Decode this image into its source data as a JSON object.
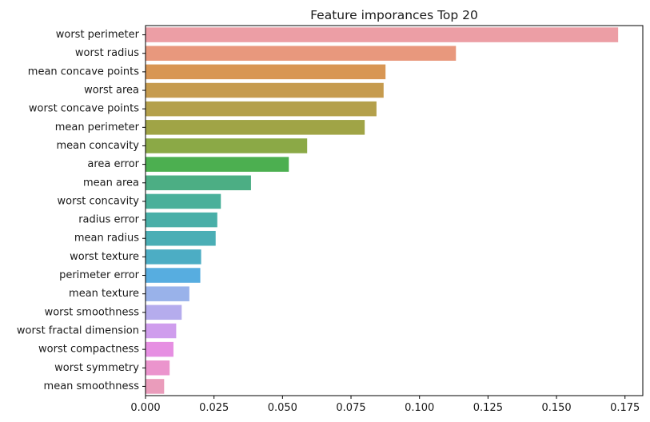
{
  "chart_data": {
    "type": "bar",
    "orientation": "horizontal",
    "title": "Feature imporances Top 20",
    "xlabel": "",
    "ylabel": "",
    "xlim": [
      0.0,
      0.1815
    ],
    "grid": false,
    "legend": "none",
    "categories": [
      "worst perimeter",
      "worst radius",
      "mean concave points",
      "worst area",
      "worst concave points",
      "mean perimeter",
      "mean concavity",
      "area error",
      "mean area",
      "worst concavity",
      "radius error",
      "mean radius",
      "worst texture",
      "perimeter error",
      "mean texture",
      "worst smoothness",
      "worst fractal dimension",
      "worst compactness",
      "worst symmetry",
      "mean smoothness"
    ],
    "values": [
      0.1725,
      0.1133,
      0.0876,
      0.0869,
      0.0843,
      0.08,
      0.059,
      0.0523,
      0.0385,
      0.0275,
      0.0262,
      0.0256,
      0.0203,
      0.02,
      0.016,
      0.0132,
      0.0112,
      0.0102,
      0.0088,
      0.0068
    ],
    "colors": [
      "#ec9ea5",
      "#e8987d",
      "#d89654",
      "#c69b4e",
      "#b4a04b",
      "#a0a446",
      "#8ba946",
      "#4caf50",
      "#4cae84",
      "#4ab09a",
      "#49afa8",
      "#4aaeb5",
      "#4cadc4",
      "#57ade0",
      "#99b2ea",
      "#b5aced",
      "#cf9ded",
      "#e68fe2",
      "#eb94cd",
      "#ea9cbb"
    ],
    "x_ticks": [
      "0.000",
      "0.025",
      "0.050",
      "0.075",
      "0.100",
      "0.125",
      "0.150",
      "0.175"
    ]
  }
}
